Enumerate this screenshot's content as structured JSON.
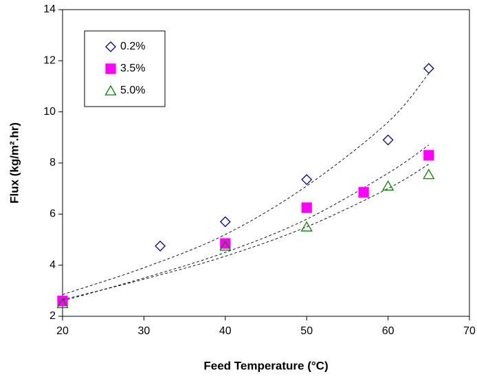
{
  "chart_data": {
    "type": "scatter",
    "xlabel": "Feed Temperature (°C)",
    "ylabel": "Flux (kg/m².hr)",
    "xlim": [
      20,
      70
    ],
    "xticks": [
      20,
      30,
      40,
      50,
      60,
      70
    ],
    "ylim": [
      2,
      14
    ],
    "yticks": [
      2,
      4,
      6,
      8,
      10,
      12,
      14
    ],
    "legend": "top-left",
    "series": [
      {
        "name": "0.2%",
        "color": "#000080",
        "marker": "diamond",
        "filled": false,
        "x": [
          20,
          32,
          40,
          50,
          60,
          65
        ],
        "values": [
          2.6,
          4.75,
          5.7,
          7.35,
          8.9,
          11.7
        ],
        "trendline": {
          "x": [
            20,
            30,
            40,
            50,
            60,
            65
          ],
          "values": [
            2.85,
            3.9,
            5.2,
            7.1,
            9.6,
            11.5
          ]
        }
      },
      {
        "name": "3.5%",
        "color": "#ff00ff",
        "marker": "square",
        "filled": true,
        "x": [
          20,
          40,
          50,
          57,
          65
        ],
        "values": [
          2.6,
          4.85,
          6.25,
          6.85,
          8.3
        ],
        "trendline": {
          "x": [
            20,
            30,
            40,
            50,
            60,
            65
          ],
          "values": [
            2.6,
            3.5,
            4.5,
            5.8,
            7.6,
            8.7
          ]
        }
      },
      {
        "name": "5.0%",
        "color": "#008000",
        "marker": "triangle",
        "filled": false,
        "x": [
          20,
          40,
          50,
          60,
          65
        ],
        "values": [
          2.5,
          4.75,
          5.5,
          7.1,
          7.55
        ],
        "trendline": {
          "x": [
            20,
            30,
            40,
            50,
            60,
            65
          ],
          "values": [
            2.65,
            3.45,
            4.35,
            5.5,
            7.0,
            7.95
          ]
        }
      }
    ]
  }
}
